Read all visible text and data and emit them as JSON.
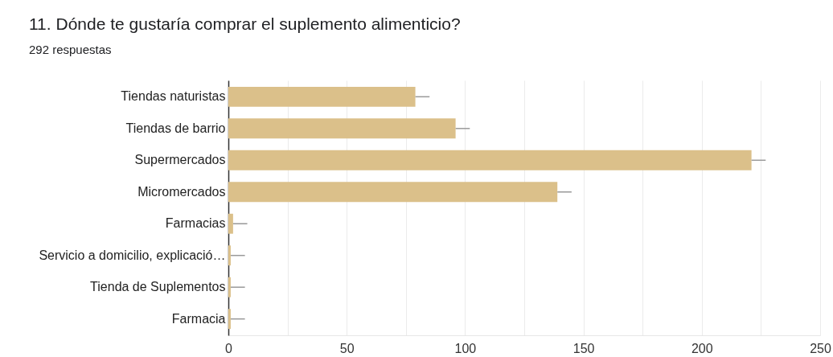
{
  "chart_data": {
    "type": "bar",
    "orientation": "horizontal",
    "title": "11. Dónde te gustaría comprar el suplemento alimenticio?",
    "subtitle": "292 respuestas",
    "categories": [
      "Tiendas naturistas",
      "Tiendas de barrio",
      "Supermercados",
      "Micromercados",
      "Farmacias",
      "Servicio a domicilio, explicació…",
      "Tienda de Suplementos",
      "Farmacia"
    ],
    "values": [
      79,
      96,
      221,
      139,
      2,
      1,
      1,
      1
    ],
    "errors": [
      [
        79,
        85
      ],
      [
        96,
        102
      ],
      [
        221,
        227
      ],
      [
        139,
        145
      ],
      [
        2,
        8
      ],
      [
        1,
        7
      ],
      [
        1,
        7
      ],
      [
        1,
        7
      ]
    ],
    "color": "#dbc08a",
    "xlim": [
      0,
      250
    ],
    "xticks": [
      0,
      {
        "value": 25,
        "label": null
      },
      50,
      {
        "value": 75,
        "label": null
      },
      100,
      {
        "value": 125,
        "label": null
      },
      150,
      {
        "value": 175,
        "label": null
      },
      200,
      {
        "value": 225,
        "label": null
      },
      250
    ],
    "grid": "x"
  }
}
